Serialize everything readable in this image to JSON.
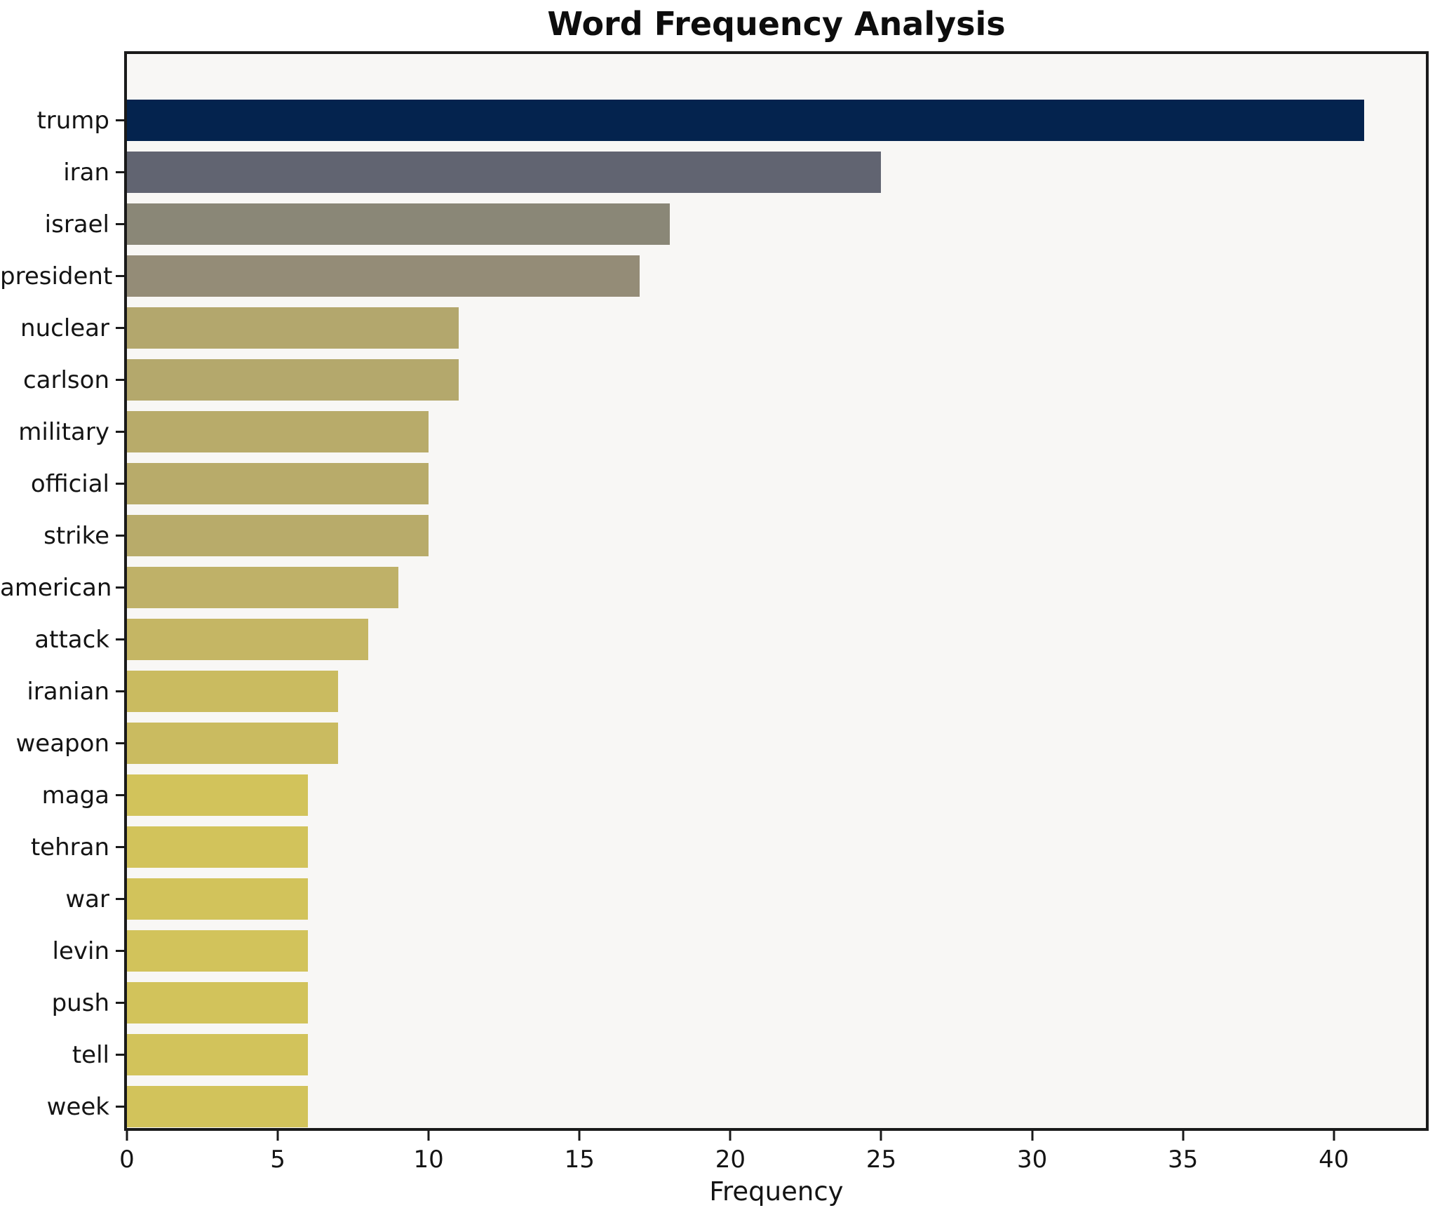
{
  "title": "Word Frequency Analysis",
  "x_axis": {
    "label": "Frequency",
    "ticks": [
      0,
      5,
      10,
      15,
      20,
      25,
      30,
      35,
      40
    ],
    "min": 0,
    "max": 43.05
  },
  "chart_data": {
    "type": "bar",
    "orientation": "horizontal",
    "title": "Word Frequency Analysis",
    "xlabel": "Frequency",
    "ylabel": "",
    "categories": [
      "trump",
      "iran",
      "israel",
      "president",
      "nuclear",
      "carlson",
      "military",
      "official",
      "strike",
      "american",
      "attack",
      "iranian",
      "weapon",
      "maga",
      "tehran",
      "war",
      "levin",
      "push",
      "tell",
      "week"
    ],
    "values": [
      41,
      25,
      18,
      17,
      11,
      11,
      10,
      10,
      10,
      9,
      8,
      7,
      7,
      6,
      6,
      6,
      6,
      6,
      6,
      6
    ],
    "bar_colors": [
      "#04234e",
      "#616471",
      "#8a8777",
      "#948c77",
      "#b3a76d",
      "#b4a86c",
      "#b8ab6a",
      "#b8ab6a",
      "#b8ab6a",
      "#bfb168",
      "#c5b664",
      "#cabb60",
      "#cabb60",
      "#d2c35b",
      "#d2c35b",
      "#d2c35b",
      "#d2c35b",
      "#d2c35b",
      "#d2c35b",
      "#d2c35b"
    ],
    "xlim": [
      0,
      43.05
    ],
    "xticks": [
      0,
      5,
      10,
      15,
      20,
      25,
      30,
      35,
      40
    ],
    "grid": false,
    "legend": null,
    "plot_background": "#f8f7f5",
    "figure_background": "#ffffff",
    "spine_color": "#1a1a1a",
    "colormap": "cividis"
  }
}
